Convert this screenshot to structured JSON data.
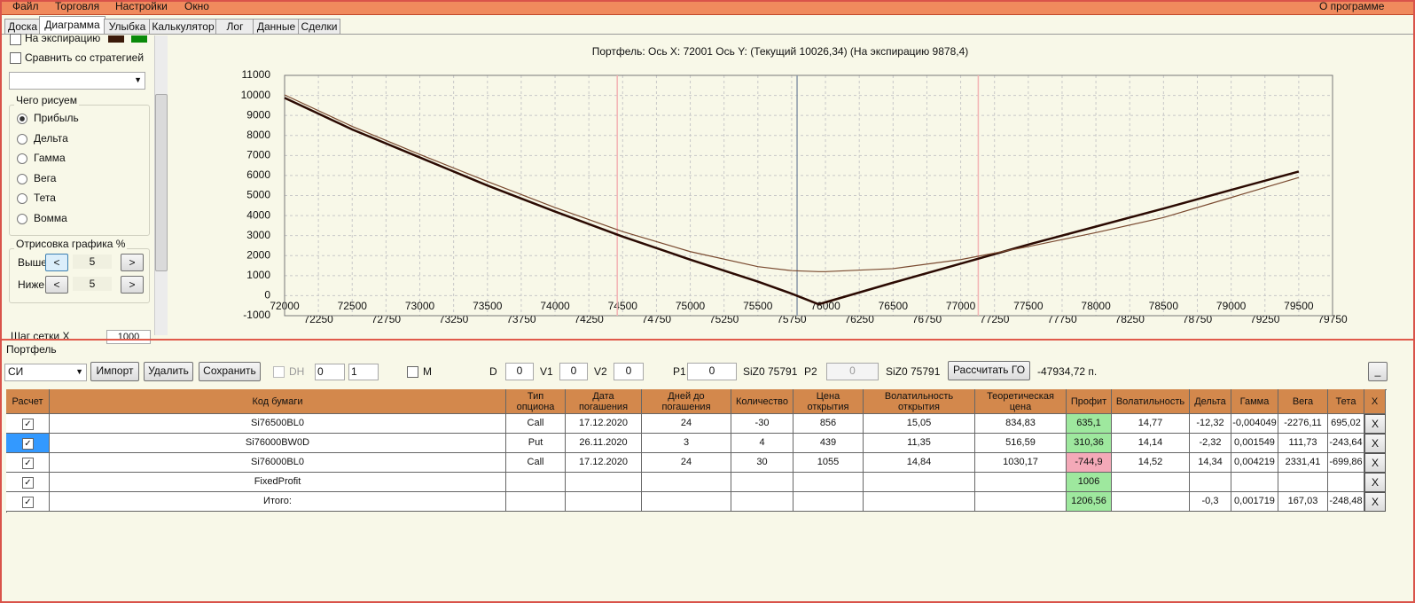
{
  "menu": [
    "Файл",
    "Торговля",
    "Настройки",
    "Окно"
  ],
  "menu_right": "О программе",
  "tabs": [
    "Доска",
    "Диаграмма",
    "Улыбка",
    "Калькулятор",
    "Лог",
    "Данные",
    "Сделки"
  ],
  "left_panel": {
    "expiry_checkbox": "На экспирацию",
    "compare_checkbox": "Сравнить со стратегией",
    "draw_group": "Чего рисуем",
    "draw_options": [
      "Прибыль",
      "Дельта",
      "Гамма",
      "Вега",
      "Тета",
      "Вомма"
    ],
    "range_group": "Отрисовка графика %",
    "above_label": "Выше",
    "above_value": "5",
    "below_label": "Ниже",
    "below_value": "5",
    "prev_button": "<",
    "next_button": ">",
    "grid_step_label": "Шаг сетки Х",
    "grid_step_value": "1000"
  },
  "chart_data": {
    "type": "line",
    "title": "Портфель: Ось X: 72001 Ось Y:  (Текущий 10026,34)  (На экспирацию 9878,4)",
    "x": [
      72000,
      72500,
      73000,
      73500,
      74000,
      74500,
      75000,
      75500,
      75750,
      75950,
      76000,
      76500,
      77000,
      77500,
      78000,
      78500,
      79000,
      79500
    ],
    "series": [
      {
        "name": "На экспирацию",
        "color": "#2b0a02",
        "values": [
          9878.4,
          8300,
          6900,
          5500,
          4200,
          2950,
          1800,
          700,
          100,
          -430,
          -330,
          650,
          1600,
          2550,
          3450,
          4350,
          5280,
          6200
        ]
      },
      {
        "name": "Текущий",
        "color": "#7a4a30",
        "values": [
          10026.34,
          8450,
          7050,
          5700,
          4400,
          3200,
          2200,
          1450,
          1250,
          1200,
          1200,
          1350,
          1800,
          2450,
          3150,
          3900,
          4900,
          5900
        ]
      }
    ],
    "markers": [
      {
        "x": 74460,
        "color": "#f3b4b4"
      },
      {
        "x": 75790,
        "color": "#8a98a8"
      },
      {
        "x": 77130,
        "color": "#f3b4b4"
      }
    ],
    "xlim": [
      72000,
      79750
    ],
    "ylim": [
      -1000,
      11000
    ],
    "xticks": [
      72000,
      72250,
      72500,
      72750,
      73000,
      73250,
      73500,
      73750,
      74000,
      74250,
      74500,
      74750,
      75000,
      75250,
      75500,
      75750,
      76000,
      76250,
      76500,
      76750,
      77000,
      77250,
      77500,
      77750,
      78000,
      78250,
      78500,
      78750,
      79000,
      79250,
      79500,
      79750
    ],
    "yticks": [
      -1000,
      0,
      1000,
      2000,
      3000,
      4000,
      5000,
      6000,
      7000,
      8000,
      9000,
      10000,
      11000
    ],
    "grid": true
  },
  "portfolio": {
    "title": "Портфель",
    "instrument": "СИ",
    "buttons": [
      "Импорт",
      "Удалить",
      "Сохранить"
    ],
    "dh_label": "DH",
    "spin1": "0",
    "spin2": "1",
    "m_label": "M",
    "fields": [
      {
        "label": "D",
        "value": "0"
      },
      {
        "label": "V1",
        "value": "0"
      },
      {
        "label": "V2",
        "value": "0"
      },
      {
        "label": "P1",
        "value": "0"
      },
      {
        "label": "P2",
        "value": "0"
      }
    ],
    "p1_info": "SiZ0 75791",
    "p2_info": "SiZ0 75791",
    "calc_button": "Рассчитать ГО",
    "go_value": "-47934,72 п.",
    "collapse_button": "_"
  },
  "table": {
    "headers": [
      "Расчет",
      "Код бумаги",
      "Тип опциона",
      "Дата погашения",
      "Дней до погашения",
      "Количество",
      "Цена открытия",
      "Волатильность открытия",
      "Теоретическая цена",
      "Профит",
      "Волатильность",
      "Дельта",
      "Гамма",
      "Вега",
      "Тета",
      "X"
    ],
    "rows": [
      [
        "Si76500BL0",
        "Call",
        "17.12.2020",
        "24",
        "-30",
        "856",
        "15,05",
        "834,83",
        "635,1",
        "14,77",
        "-12,32",
        "-0,004049",
        "-2276,11",
        "695,02",
        "X"
      ],
      [
        "Si76000BW0D",
        "Put",
        "26.11.2020",
        "3",
        "4",
        "439",
        "11,35",
        "516,59",
        "310,36",
        "14,14",
        "-2,32",
        "0,001549",
        "111,73",
        "-243,64",
        "X"
      ],
      [
        "Si76000BL0",
        "Call",
        "17.12.2020",
        "24",
        "30",
        "1055",
        "14,84",
        "1030,17",
        "-744,9",
        "14,52",
        "14,34",
        "0,004219",
        "2331,41",
        "-699,86",
        "X"
      ],
      [
        "FixedProfit",
        null,
        null,
        null,
        null,
        null,
        null,
        null,
        "1006",
        null,
        null,
        null,
        null,
        null,
        "X"
      ],
      [
        "Итого:",
        null,
        null,
        null,
        null,
        null,
        null,
        null,
        "1206,56",
        null,
        "-0,3",
        "0,001719",
        "167,03",
        "-248,48",
        "X"
      ]
    ]
  }
}
